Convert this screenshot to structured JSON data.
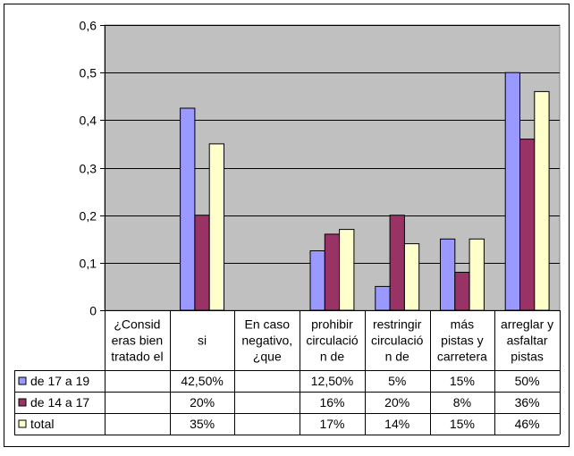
{
  "chart_data": {
    "type": "bar",
    "title": "",
    "ylim": [
      0,
      0.6
    ],
    "yticks": [
      0,
      0.1,
      0.2,
      0.3,
      0.4,
      0.5,
      0.6
    ],
    "ytick_labels": [
      "0",
      "0,1",
      "0,2",
      "0,3",
      "0,4",
      "0,5",
      "0,6"
    ],
    "grid": true,
    "plot_background": "#c0c0c0",
    "categories": [
      [
        "¿Consid",
        "eras bien",
        "tratado el"
      ],
      [
        "si"
      ],
      [
        "En caso",
        "negativo,",
        "¿que"
      ],
      [
        "prohibir",
        "circulació",
        "n de"
      ],
      [
        "restringir",
        "circulació",
        "n de"
      ],
      [
        "más",
        "pistas y",
        "carretera"
      ],
      [
        "arreglar y",
        "asfaltar",
        "pistas"
      ]
    ],
    "series": [
      {
        "name": "de 17 a 19",
        "color": "#9999ff",
        "values": [
          null,
          0.425,
          null,
          0.125,
          0.05,
          0.15,
          0.5
        ],
        "table_labels": [
          "",
          "42,50%",
          "",
          "12,50%",
          "5%",
          "15%",
          "50%"
        ]
      },
      {
        "name": "de 14 a 17",
        "color": "#993366",
        "values": [
          null,
          0.2,
          null,
          0.16,
          0.2,
          0.08,
          0.36
        ],
        "table_labels": [
          "",
          "20%",
          "",
          "16%",
          "20%",
          "8%",
          "36%"
        ]
      },
      {
        "name": "total",
        "color": "#ffffcc",
        "values": [
          null,
          0.35,
          null,
          0.17,
          0.14,
          0.15,
          0.46
        ],
        "table_labels": [
          "",
          "35%",
          "",
          "17%",
          "14%",
          "15%",
          "46%"
        ]
      }
    ]
  }
}
